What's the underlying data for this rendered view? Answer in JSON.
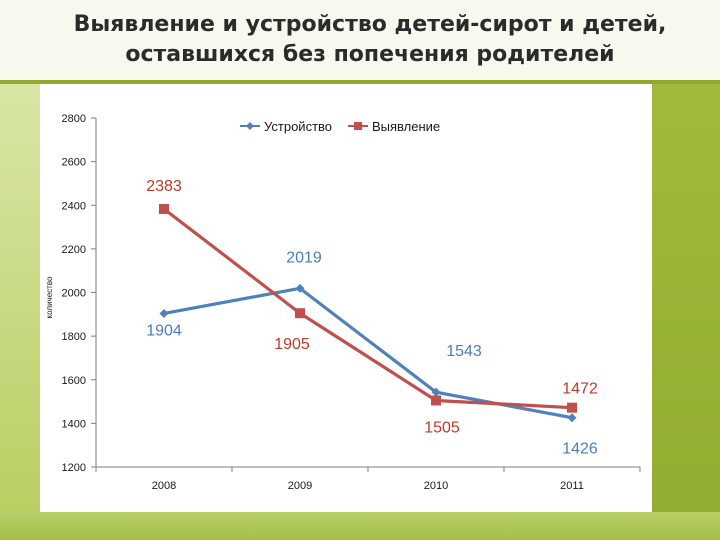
{
  "slide": {
    "title_line1": "Выявление и устройство детей-сирот и детей,",
    "title_line2": "оставшихся без попечения родителей"
  },
  "colors": {
    "series_ustroystvo": "#4f81bd",
    "series_vyyavlenie": "#c0504d",
    "label_red": "#c0392b",
    "label_blue": "#4a7ebb"
  },
  "chart_data": {
    "type": "line",
    "title": "",
    "xlabel": "",
    "ylabel": "количество",
    "categories": [
      "2008",
      "2009",
      "2010",
      "2011"
    ],
    "ylim": [
      1200,
      2800
    ],
    "yticks": [
      1200,
      1400,
      1600,
      1800,
      2000,
      2200,
      2400,
      2600,
      2800
    ],
    "grid": false,
    "legend_position": "top",
    "series": [
      {
        "name": "Устройство",
        "values": [
          1904,
          2019,
          1543,
          1426
        ],
        "marker": "diamond"
      },
      {
        "name": "Выявление",
        "values": [
          2383,
          1905,
          1505,
          1472
        ],
        "marker": "square"
      }
    ]
  }
}
